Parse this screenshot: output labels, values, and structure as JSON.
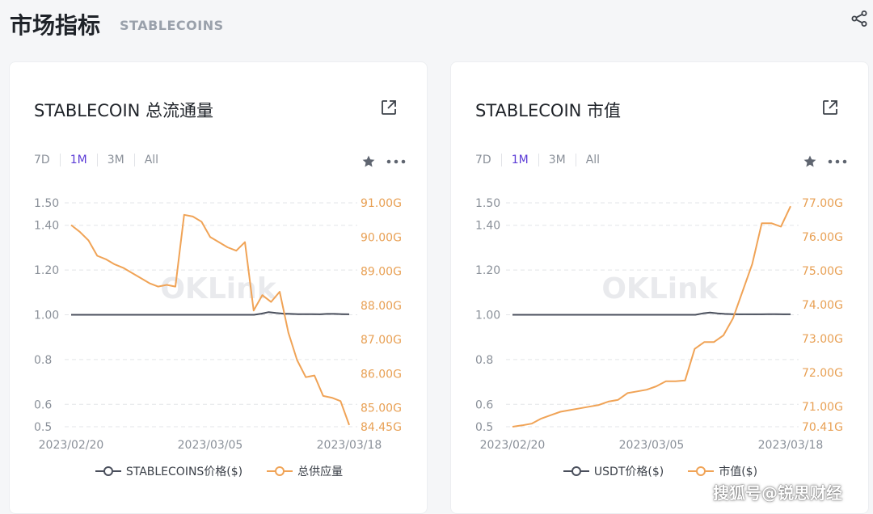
{
  "page": {
    "title": "市场指标",
    "subtitle": "STABLECOINS"
  },
  "icons": {
    "share": "share-icon",
    "external": "external-link-icon",
    "star": "star-icon",
    "more": "more-icon"
  },
  "colors": {
    "price_line": "#4a4f5c",
    "value_line": "#f0a356",
    "active_tab": "#5b3bd6",
    "grid": "#e3e5e8",
    "axis_text": "#8a9099",
    "right_axis_text": "#e8a054"
  },
  "watermark_chart": "OKLink",
  "footer_watermark": "搜狐号@锐思财经",
  "cards": [
    {
      "title": "STABLECOIN 总流通量",
      "tabs": [
        "7D",
        "1M",
        "3M",
        "All"
      ],
      "active_tab": "1M",
      "chart_data": {
        "type": "line",
        "x_ticks": [
          "2023/02/20",
          "2023/03/05",
          "2023/03/18"
        ],
        "left_axis": {
          "ticks": [
            "1.50",
            "1.40",
            "1.20",
            "1.00",
            "0.8",
            "0.6",
            "0.5"
          ],
          "ylim": [
            0.5,
            1.5
          ]
        },
        "right_axis": {
          "ticks": [
            "91.00G",
            "90.00G",
            "89.00G",
            "88.00G",
            "87.00G",
            "86.00G",
            "85.00G",
            "84.45G"
          ],
          "ylim": [
            84.45,
            91.0
          ]
        },
        "grid": true,
        "legend_placement": "bottom",
        "series": [
          {
            "name": "STABLECOINS价格($)",
            "axis": "left",
            "values": [
              1.0,
              1.0,
              1.0,
              1.0,
              1.0,
              1.0,
              1.0,
              1.0,
              1.0,
              1.0,
              1.0,
              1.0,
              1.0,
              1.0,
              1.0,
              1.0,
              1.0,
              1.0,
              1.0,
              1.0,
              1.0,
              1.0,
              1.0,
              1.0,
              1.0,
              1.0,
              1.005,
              1.012,
              1.008,
              1.005,
              1.004,
              1.003,
              1.003,
              1.003,
              1.002,
              1.004,
              1.004,
              1.003,
              1.002
            ]
          },
          {
            "name": "总供应量",
            "axis": "right",
            "values": [
              90.35,
              90.15,
              89.9,
              89.45,
              89.35,
              89.2,
              89.1,
              88.95,
              88.8,
              88.65,
              88.55,
              88.6,
              88.55,
              90.65,
              90.6,
              90.45,
              90.0,
              89.85,
              89.7,
              89.6,
              89.85,
              87.85,
              88.3,
              88.1,
              88.4,
              87.2,
              86.4,
              85.9,
              85.95,
              85.35,
              85.3,
              85.2,
              84.5
            ]
          }
        ]
      }
    },
    {
      "title": "STABLECOIN 市值",
      "tabs": [
        "7D",
        "1M",
        "3M",
        "All"
      ],
      "active_tab": "1M",
      "chart_data": {
        "type": "line",
        "x_ticks": [
          "2023/02/20",
          "2023/03/05",
          "2023/03/18"
        ],
        "left_axis": {
          "ticks": [
            "1.50",
            "1.40",
            "1.20",
            "1.00",
            "0.8",
            "0.6",
            "0.5"
          ],
          "ylim": [
            0.5,
            1.5
          ]
        },
        "right_axis": {
          "ticks": [
            "77.00G",
            "76.00G",
            "75.00G",
            "74.00G",
            "73.00G",
            "72.00G",
            "71.00G",
            "70.41G"
          ],
          "ylim": [
            70.41,
            77.0
          ]
        },
        "grid": true,
        "legend_placement": "bottom",
        "series": [
          {
            "name": "USDT价格($)",
            "axis": "left",
            "values": [
              1.0,
              1.0,
              1.0,
              1.0,
              1.0,
              1.0,
              1.0,
              1.0,
              1.0,
              1.0,
              1.0,
              1.0,
              1.0,
              1.0,
              1.0,
              1.0,
              1.0,
              1.0,
              1.0,
              1.0,
              1.0,
              1.0,
              1.0,
              1.0,
              1.0,
              1.0,
              1.006,
              1.01,
              1.006,
              1.004,
              1.003,
              1.002,
              1.002,
              1.002,
              1.002,
              1.003,
              1.003,
              1.002,
              1.002
            ]
          },
          {
            "name": "市值($)",
            "axis": "right",
            "values": [
              70.41,
              70.45,
              70.5,
              70.65,
              70.75,
              70.85,
              70.9,
              70.95,
              71.0,
              71.05,
              71.15,
              71.2,
              71.4,
              71.45,
              71.5,
              71.6,
              71.75,
              71.75,
              71.77,
              72.7,
              72.9,
              72.9,
              73.1,
              73.6,
              74.4,
              75.2,
              76.4,
              76.4,
              76.3,
              76.9
            ]
          }
        ]
      }
    }
  ]
}
